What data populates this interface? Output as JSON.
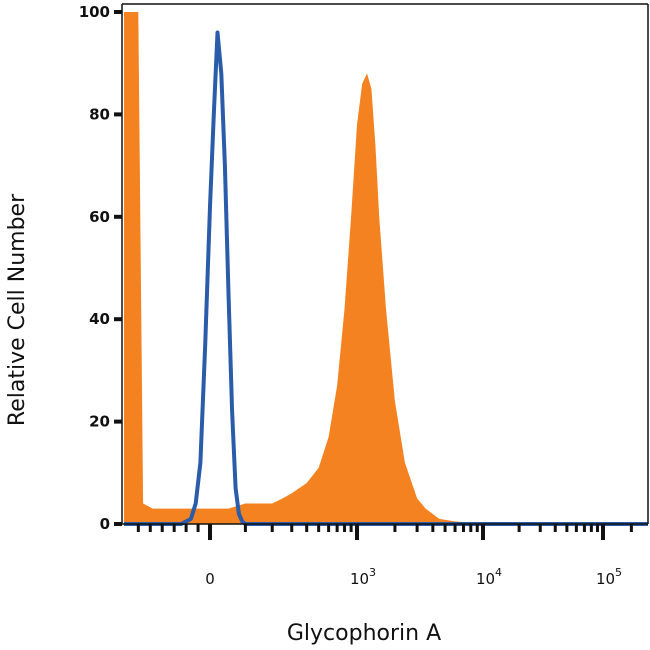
{
  "chart_data": {
    "type": "area",
    "title": "",
    "xlabel": "Glycophorin A",
    "ylabel": "Relative Cell Number",
    "x_scale": "biexponential",
    "x_tick_labels": [
      {
        "base": "0",
        "exp": ""
      },
      {
        "base": "10",
        "exp": "3"
      },
      {
        "base": "10",
        "exp": "4"
      },
      {
        "base": "10",
        "exp": "5"
      }
    ],
    "x_tick_values": [
      0,
      1000,
      10000,
      100000
    ],
    "yticks": [
      0,
      20,
      40,
      60,
      80,
      100
    ],
    "ylim": [
      0,
      100
    ],
    "grid": false,
    "legend": "none",
    "colors": {
      "stained": "#F48220",
      "control": "#2A5CAA",
      "axis": "#111111"
    },
    "series": [
      {
        "style": "filled",
        "color": "#F48220",
        "points": [
          [
            -180,
            0
          ],
          [
            -180,
            100
          ],
          [
            -150,
            100
          ],
          [
            -140,
            4
          ],
          [
            -120,
            3
          ],
          [
            -80,
            3
          ],
          [
            -40,
            3
          ],
          [
            0,
            3
          ],
          [
            50,
            3
          ],
          [
            100,
            4
          ],
          [
            150,
            4
          ],
          [
            200,
            4
          ],
          [
            250,
            5
          ],
          [
            300,
            6
          ],
          [
            400,
            8
          ],
          [
            500,
            11
          ],
          [
            600,
            17
          ],
          [
            700,
            27
          ],
          [
            800,
            42
          ],
          [
            900,
            60
          ],
          [
            1000,
            78
          ],
          [
            1100,
            86
          ],
          [
            1200,
            88
          ],
          [
            1300,
            85
          ],
          [
            1400,
            74
          ],
          [
            1500,
            60
          ],
          [
            1700,
            42
          ],
          [
            2000,
            24
          ],
          [
            2400,
            12
          ],
          [
            3000,
            5
          ],
          [
            3500,
            3
          ],
          [
            4500,
            1
          ],
          [
            6000,
            0.5
          ],
          [
            10000,
            0
          ],
          [
            100000,
            0
          ],
          [
            300000,
            0
          ]
        ]
      },
      {
        "style": "line",
        "color": "#2A5CAA",
        "points": [
          [
            -180,
            0
          ],
          [
            -60,
            0
          ],
          [
            -40,
            1
          ],
          [
            -30,
            4
          ],
          [
            -20,
            12
          ],
          [
            -10,
            35
          ],
          [
            0,
            62
          ],
          [
            10,
            80
          ],
          [
            20,
            96
          ],
          [
            30,
            88
          ],
          [
            40,
            70
          ],
          [
            50,
            45
          ],
          [
            60,
            22
          ],
          [
            70,
            7
          ],
          [
            80,
            2
          ],
          [
            90,
            0.5
          ],
          [
            100,
            0
          ],
          [
            1000,
            0
          ],
          [
            10000,
            0
          ],
          [
            100000,
            0
          ],
          [
            300000,
            0
          ]
        ]
      }
    ]
  }
}
